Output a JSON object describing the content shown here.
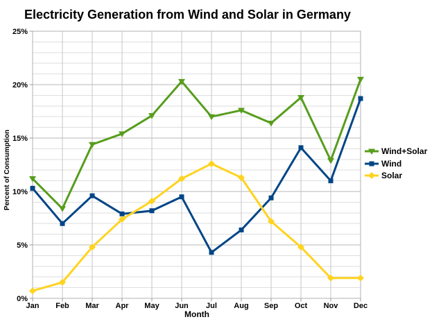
{
  "chart_data": {
    "type": "line",
    "title": "Electricity Generation from Wind and Solar in Germany",
    "xlabel": "Month",
    "ylabel": "Percent of Consumption",
    "categories": [
      "Jan",
      "Feb",
      "Mar",
      "Apr",
      "May",
      "Jun",
      "Jul",
      "Aug",
      "Sep",
      "Oct",
      "Nov",
      "Dec"
    ],
    "series": [
      {
        "name": "Wind+Solar",
        "color": "#579D1C",
        "marker": "triangle-down",
        "values": [
          11.2,
          8.4,
          14.4,
          15.4,
          17.1,
          20.3,
          17.0,
          17.6,
          16.4,
          18.8,
          12.9,
          20.5
        ]
      },
      {
        "name": "Wind",
        "color": "#004586",
        "marker": "square",
        "values": [
          10.3,
          7.0,
          9.6,
          7.9,
          8.2,
          9.5,
          4.3,
          6.4,
          9.4,
          14.1,
          11.0,
          18.7
        ]
      },
      {
        "name": "Solar",
        "color": "#FFD320",
        "marker": "diamond",
        "values": [
          0.7,
          1.5,
          4.8,
          7.4,
          9.1,
          11.2,
          12.6,
          11.3,
          7.2,
          4.8,
          1.9,
          1.9
        ]
      }
    ],
    "ylim": [
      0,
      25
    ],
    "y_major_step": 5,
    "y_minor_step": 1,
    "y_tick_labels": [
      "0%",
      "5%",
      "10%",
      "15%",
      "20%",
      "25%"
    ],
    "grid": true,
    "legend_position": "right"
  }
}
